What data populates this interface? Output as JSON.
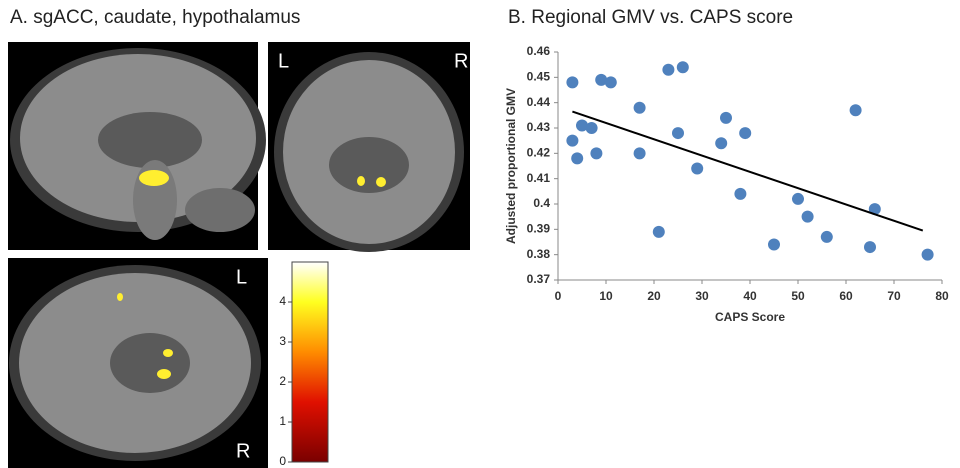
{
  "chart_data": [
    {
      "type": "image",
      "title": "A. sgACC, caudate, hypothalamus",
      "labels": [
        "L",
        "R",
        "L",
        "R"
      ],
      "ylim": [
        0,
        5
      ],
      "yticks": [
        0,
        1,
        2,
        3,
        4
      ]
    },
    {
      "type": "scatter",
      "title": "B. Regional GMV vs. CAPS score",
      "xlabel": "CAPS Score",
      "ylabel": "Adjusted proportional GMV",
      "color": "#4f81bd",
      "x": [
        3,
        3,
        4,
        5,
        7,
        8,
        9,
        11,
        17,
        17,
        21,
        23,
        25,
        26,
        29,
        34,
        35,
        38,
        39,
        45,
        50,
        52,
        56,
        62,
        65,
        66,
        77
      ],
      "y": [
        0.448,
        0.425,
        0.418,
        0.431,
        0.43,
        0.42,
        0.449,
        0.448,
        0.438,
        0.42,
        0.389,
        0.453,
        0.428,
        0.454,
        0.414,
        0.424,
        0.434,
        0.404,
        0.428,
        0.384,
        0.402,
        0.395,
        0.387,
        0.437,
        0.383,
        0.398,
        0.38
      ],
      "trendline": {
        "x": [
          3,
          76
        ],
        "y": [
          0.4365,
          0.3895
        ]
      },
      "xlim": [
        0,
        80
      ],
      "xticks": [
        0,
        10,
        20,
        30,
        40,
        50,
        60,
        70,
        80
      ],
      "ylim": [
        0.37,
        0.46
      ],
      "yticks": [
        0.37,
        0.38,
        0.39,
        0.4,
        0.41,
        0.42,
        0.43,
        0.44,
        0.45,
        0.46
      ]
    }
  ]
}
